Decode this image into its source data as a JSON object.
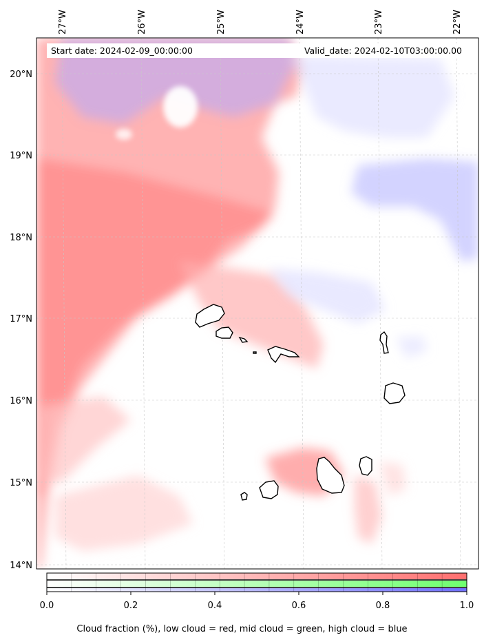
{
  "map": {
    "start_date": "Start date: 2024-02-09_00:00:00",
    "valid_date": "Valid_date: 2024-02-10T03:00:00.00",
    "lon_labels": [
      "27°W",
      "26°W",
      "25°W",
      "24°W",
      "23°W",
      "22°W"
    ],
    "lat_labels": [
      "20°N",
      "19°N",
      "18°N",
      "17°N",
      "16°N",
      "15°N",
      "14°N"
    ],
    "colors": {
      "low_cloud": "#ff6f6f",
      "mid_cloud": "#6fff6f",
      "high_cloud": "#6f6fff"
    }
  },
  "colorbar": {
    "ticks": [
      "0.0",
      "0.2",
      "0.4",
      "0.6",
      "0.8",
      "1.0"
    ],
    "caption": "Cloud fraction (%), low cloud = red, mid cloud = green, high cloud = blue"
  }
}
